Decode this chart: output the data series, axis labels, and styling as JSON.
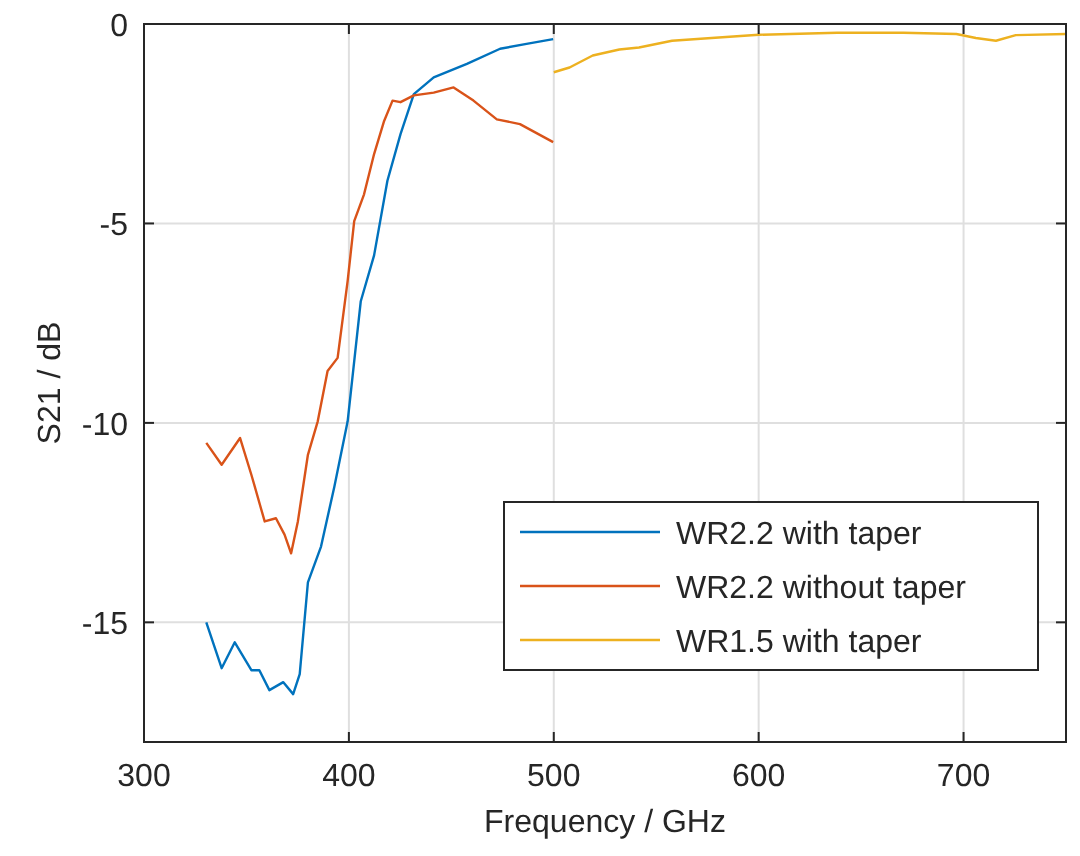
{
  "chart_data": {
    "type": "line",
    "xlabel": "Frequency / GHz",
    "ylabel": "S21 / dB",
    "xlim": [
      300,
      750
    ],
    "ylim": [
      -18,
      0
    ],
    "xticks": [
      300,
      400,
      500,
      600,
      700
    ],
    "yticks": [
      -15,
      -10,
      -5,
      0
    ],
    "grid": true,
    "legend": "bottom right",
    "series": [
      {
        "name": "WR2.2 with taper",
        "color": "#0072bd",
        "x": [
          330.4,
          337.9,
          344.3,
          352.4,
          356.3,
          361.2,
          368,
          372.8,
          376,
          380,
          386.4,
          392.9,
          399.4,
          405.8,
          412.3,
          418.8,
          425.2,
          431.7,
          441.4,
          457.6,
          473.8,
          486.7,
          499.7
        ],
        "values": [
          -15.0,
          -16.15,
          -15.5,
          -16.2,
          -16.2,
          -16.7,
          -16.5,
          -16.8,
          -16.3,
          -14.0,
          -13.1,
          -11.6,
          -9.96,
          -6.95,
          -5.8,
          -3.93,
          -2.76,
          -1.76,
          -1.34,
          -1.0,
          -0.62,
          -0.5,
          -0.38
        ]
      },
      {
        "name": "WR2.2 without taper",
        "color": "#d95319",
        "x": [
          330.4,
          337.9,
          346.9,
          352.4,
          358.9,
          364.4,
          368.6,
          371.8,
          375.1,
          380,
          384.8,
          389.6,
          394.5,
          399.4,
          402.6,
          407.4,
          412.3,
          417.2,
          421.3,
          425.2,
          431.7,
          441.4,
          451.1,
          460.8,
          472.2,
          483.5,
          499.7
        ],
        "values": [
          -10.5,
          -11.05,
          -10.38,
          -11.3,
          -12.47,
          -12.39,
          -12.8,
          -13.27,
          -12.47,
          -10.8,
          -9.96,
          -8.7,
          -8.37,
          -6.44,
          -4.94,
          -4.27,
          -3.26,
          -2.43,
          -1.92,
          -1.96,
          -1.79,
          -1.72,
          -1.59,
          -1.92,
          -2.39,
          -2.51,
          -2.96
        ]
      },
      {
        "name": "WR1.5 with taper",
        "color": "#edb120",
        "x": [
          500,
          507.7,
          519,
          532,
          541.6,
          557.7,
          577,
          600,
          638.4,
          670.6,
          696.5,
          706,
          715.8,
          725.5,
          750
        ],
        "values": [
          -1.21,
          -1.09,
          -0.79,
          -0.64,
          -0.59,
          -0.42,
          -0.35,
          -0.27,
          -0.22,
          -0.22,
          -0.25,
          -0.35,
          -0.42,
          -0.28,
          -0.25
        ]
      }
    ]
  }
}
